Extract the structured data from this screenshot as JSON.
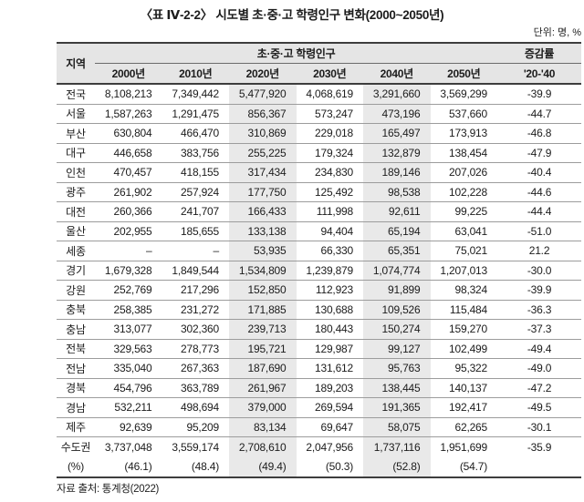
{
  "title": "〈표 Ⅳ-2-2〉 시도별 초·중·고 학령인구 변화(2000~2050년)",
  "unit_note": "단위: 명, %",
  "source": "자료 출처: 통계청(2022)",
  "colors": {
    "header_bg": "#e5e5e5",
    "shaded_column_bg": "#e9e9e9",
    "border_dark": "#3d3d3d",
    "border_light": "#9c9c9c",
    "text": "#1c1c1c"
  },
  "table": {
    "region_header": "지역",
    "group_header": "초·중·고 학령인구",
    "change_header": "증감률",
    "change_subheader": "'20-'40",
    "year_headers": [
      "2000년",
      "2010년",
      "2020년",
      "2030년",
      "2040년",
      "2050년"
    ],
    "shaded_year_columns": [
      "2020년",
      "2040년"
    ],
    "rows": [
      {
        "region": "전국",
        "values": [
          "8,108,213",
          "7,349,442",
          "5,477,920",
          "4,068,619",
          "3,291,660",
          "3,569,299"
        ],
        "change": "-39.9"
      },
      {
        "region": "서울",
        "values": [
          "1,587,263",
          "1,291,475",
          "856,367",
          "573,247",
          "473,196",
          "537,660"
        ],
        "change": "-44.7"
      },
      {
        "region": "부산",
        "values": [
          "630,804",
          "466,470",
          "310,869",
          "229,018",
          "165,497",
          "173,913"
        ],
        "change": "-46.8"
      },
      {
        "region": "대구",
        "values": [
          "446,658",
          "383,756",
          "255,225",
          "179,324",
          "132,879",
          "138,454"
        ],
        "change": "-47.9"
      },
      {
        "region": "인천",
        "values": [
          "470,457",
          "418,155",
          "317,434",
          "234,830",
          "189,146",
          "207,026"
        ],
        "change": "-40.4"
      },
      {
        "region": "광주",
        "values": [
          "261,902",
          "257,924",
          "177,750",
          "125,492",
          "98,538",
          "102,228"
        ],
        "change": "-44.6"
      },
      {
        "region": "대전",
        "values": [
          "260,366",
          "241,707",
          "166,433",
          "111,998",
          "92,611",
          "99,225"
        ],
        "change": "-44.4"
      },
      {
        "region": "울산",
        "values": [
          "202,955",
          "185,655",
          "133,138",
          "94,404",
          "65,194",
          "63,041"
        ],
        "change": "-51.0"
      },
      {
        "region": "세종",
        "values": [
          "–",
          "–",
          "53,935",
          "66,330",
          "65,351",
          "75,021"
        ],
        "change": "21.2"
      },
      {
        "region": "경기",
        "values": [
          "1,679,328",
          "1,849,544",
          "1,534,809",
          "1,239,879",
          "1,074,774",
          "1,207,013"
        ],
        "change": "-30.0"
      },
      {
        "region": "강원",
        "values": [
          "252,769",
          "217,296",
          "152,850",
          "112,923",
          "91,899",
          "98,324"
        ],
        "change": "-39.9"
      },
      {
        "region": "충북",
        "values": [
          "258,385",
          "231,272",
          "171,885",
          "130,688",
          "109,526",
          "115,484"
        ],
        "change": "-36.3"
      },
      {
        "region": "충남",
        "values": [
          "313,077",
          "302,360",
          "239,713",
          "180,443",
          "150,274",
          "159,270"
        ],
        "change": "-37.3"
      },
      {
        "region": "전북",
        "values": [
          "329,563",
          "278,773",
          "195,721",
          "129,987",
          "99,127",
          "102,499"
        ],
        "change": "-49.4"
      },
      {
        "region": "전남",
        "values": [
          "335,040",
          "267,363",
          "187,690",
          "131,612",
          "95,763",
          "95,322"
        ],
        "change": "-49.0"
      },
      {
        "region": "경북",
        "values": [
          "454,796",
          "363,789",
          "261,967",
          "189,203",
          "138,445",
          "140,137"
        ],
        "change": "-47.2"
      },
      {
        "region": "경남",
        "values": [
          "532,211",
          "498,694",
          "379,000",
          "269,594",
          "191,365",
          "192,417"
        ],
        "change": "-49.5"
      },
      {
        "region": "제주",
        "values": [
          "92,639",
          "95,209",
          "83,134",
          "69,647",
          "58,075",
          "62,265"
        ],
        "change": "-30.1"
      }
    ],
    "summary_row": {
      "region_line1": "수도권",
      "region_line2": "(%)",
      "values": [
        "3,737,048",
        "3,559,174",
        "2,708,610",
        "2,047,956",
        "1,737,116",
        "1,951,699"
      ],
      "percents": [
        "(46.1)",
        "(48.4)",
        "(49.4)",
        "(50.3)",
        "(52.8)",
        "(54.7)"
      ],
      "change": "-35.9"
    }
  }
}
